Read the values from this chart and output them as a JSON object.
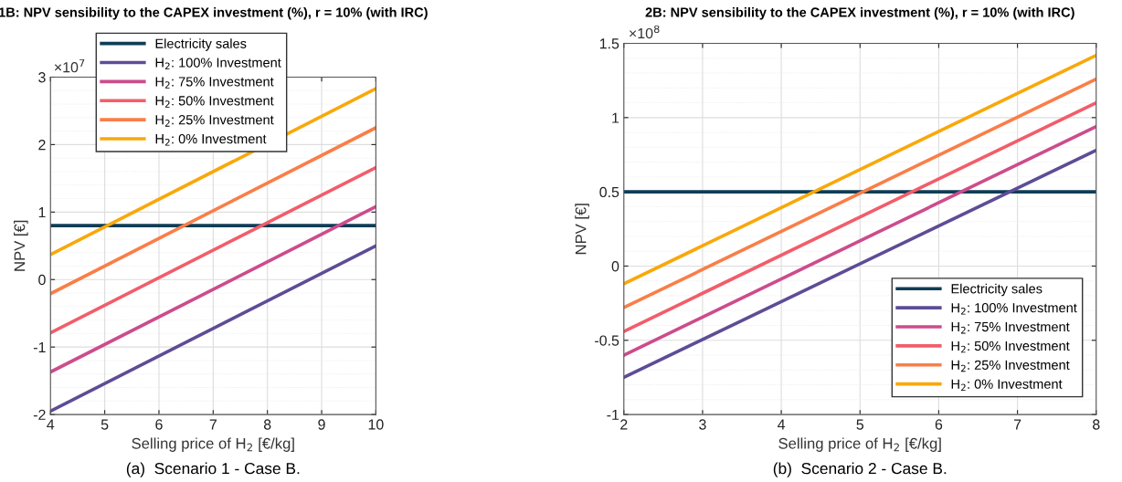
{
  "chart_data": [
    {
      "type": "line",
      "title": "1B: NPV sensibility to the CAPEX investment (%), r = 10% (with IRC)",
      "xlabel": "Selling price of H$_{2}$ [€/kg]",
      "ylabel": "NPV [€]",
      "x": [
        4,
        10
      ],
      "xlim": [
        4,
        10
      ],
      "xticks": [
        4,
        5,
        6,
        7,
        8,
        9,
        10
      ],
      "ylim": [
        -2,
        3
      ],
      "yticks": [
        -2,
        -1,
        0,
        1,
        2,
        3
      ],
      "grid": true,
      "legend": "top left",
      "line_style": "solid",
      "marker": "none",
      "annotations": [
        "×10$^{7}$",
        "(a)  Scenario 1 - Case B."
      ],
      "series": [
        {
          "name": "Electricity sales",
          "color": "#0f3d56",
          "values": [
            0.8,
            0.8
          ]
        },
        {
          "name": "H$_{2}$: 100% Investment",
          "color": "#5e4c96",
          "values": [
            -1.95,
            0.5
          ]
        },
        {
          "name": "H$_{2}$: 75% Investment",
          "color": "#cc4c8c",
          "values": [
            -1.37,
            1.08
          ]
        },
        {
          "name": "H$_{2}$: 50% Investment",
          "color": "#f25d6b",
          "values": [
            -0.79,
            1.66
          ]
        },
        {
          "name": "H$_{2}$: 25% Investment",
          "color": "#fa7e48",
          "values": [
            -0.21,
            2.25
          ]
        },
        {
          "name": "H$_{2}$: 0% Investment",
          "color": "#f9a80a",
          "values": [
            0.37,
            2.83
          ]
        }
      ]
    },
    {
      "type": "line",
      "title": "2B: NPV sensibility to the CAPEX investment (%), r = 10% (with IRC)",
      "xlabel": "Selling price of H$_{2}$ [€/kg]",
      "ylabel": "NPV [€]",
      "x": [
        2,
        8
      ],
      "xlim": [
        2,
        8
      ],
      "xticks": [
        2,
        3,
        4,
        5,
        6,
        7,
        8
      ],
      "ylim": [
        -1,
        1.5
      ],
      "yticks": [
        -1,
        -0.5,
        0,
        0.5,
        1,
        1.5
      ],
      "grid": true,
      "legend": "bottom right",
      "line_style": "solid",
      "marker": "none",
      "annotations": [
        "×10$^{8}$",
        "(b)  Scenario 2 - Case B."
      ],
      "series": [
        {
          "name": "Electricity sales",
          "color": "#0f3d56",
          "values": [
            0.5,
            0.5
          ]
        },
        {
          "name": "H$_{2}$: 100% Investment",
          "color": "#5e4c96",
          "values": [
            -0.75,
            0.78
          ]
        },
        {
          "name": "H$_{2}$: 75% Investment",
          "color": "#cc4c8c",
          "values": [
            -0.6,
            0.94
          ]
        },
        {
          "name": "H$_{2}$: 50% Investment",
          "color": "#f25d6b",
          "values": [
            -0.44,
            1.1
          ]
        },
        {
          "name": "H$_{2}$: 25% Investment",
          "color": "#fa7e48",
          "values": [
            -0.28,
            1.26
          ]
        },
        {
          "name": "H$_{2}$: 0% Investment",
          "color": "#f9a80a",
          "values": [
            -0.12,
            1.42
          ]
        }
      ]
    }
  ]
}
